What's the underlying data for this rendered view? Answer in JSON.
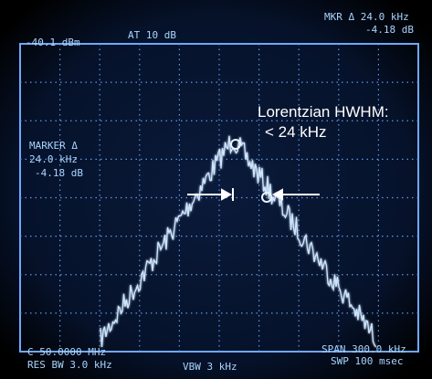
{
  "header": {
    "ref_level": "-40.1 dBm",
    "attenuation": "AT 10 dB",
    "marker_delta": "MKR Δ 24.0 kHz",
    "marker_level": "-4.18 dB"
  },
  "marker_panel": {
    "title": "MARKER Δ",
    "frequency": "24.0 kHz",
    "level": "-4.18 dB"
  },
  "annotation": {
    "line1": "Lorentzian HWHM:",
    "line2": "< 24 kHz"
  },
  "footer": {
    "center": "C 50.0000 MHz",
    "res_bw": "RES BW 3.0 kHz",
    "vbw": "VBW 3 kHz",
    "span": "SPAN 300.0 kHz",
    "sweep": "SWP 100 msec"
  }
}
